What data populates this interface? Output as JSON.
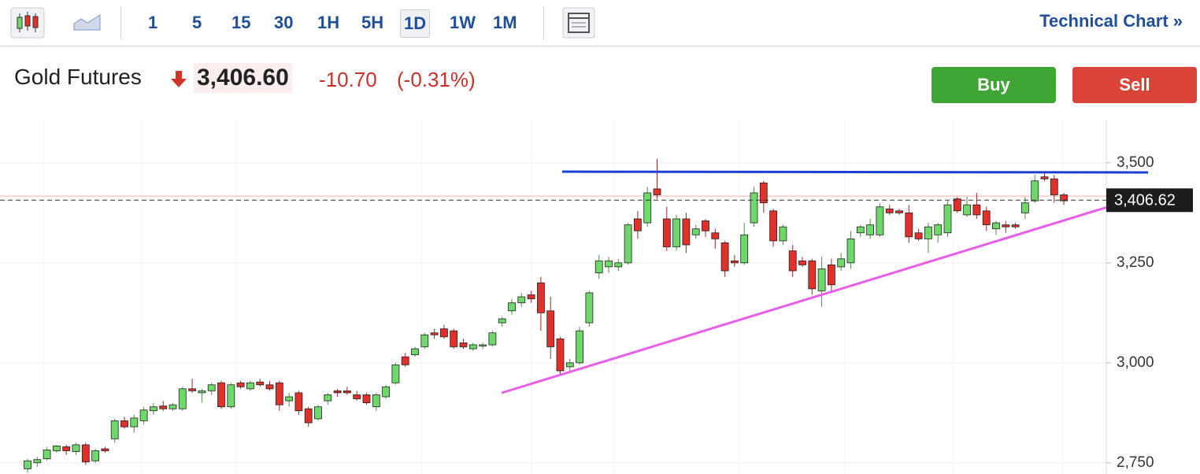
{
  "toolbar": {
    "intervals": [
      "1",
      "5",
      "15",
      "30",
      "1H",
      "5H",
      "1D",
      "1W",
      "1M"
    ],
    "selected_interval": "1D",
    "technical_chart": "Technical Chart »"
  },
  "quote": {
    "name": "Gold Futures",
    "price": "3,406.60",
    "change": "-10.70",
    "change_percent": "(-0.31%)"
  },
  "actions": {
    "buy": "Buy",
    "sell": "Sell"
  },
  "chart_data": {
    "type": "candlestick",
    "up_color": "#6fd86a",
    "down_color": "#e2302b",
    "open": [
      2735,
      2750,
      2760,
      2780,
      2790,
      2778,
      2795,
      2755,
      2785,
      2810,
      2855,
      2840,
      2855,
      2880,
      2892,
      2885,
      2885,
      2935,
      2925,
      2930,
      2950,
      2890,
      2950,
      2935,
      2952,
      2945,
      2950,
      2905,
      2925,
      2885,
      2860,
      2905,
      2930,
      2930,
      2920,
      2920,
      2890,
      2915,
      2950,
      3015,
      3020,
      3040,
      3075,
      3085,
      3080,
      3050,
      3035,
      3045,
      3045,
      3100,
      3130,
      3150,
      3170,
      3200,
      3130,
      3060,
      2990,
      3000,
      3100,
      3225,
      3240,
      3240,
      3250,
      3360,
      3350,
      3435,
      3360,
      3290,
      3360,
      3320,
      3355,
      3325,
      3300,
      3255,
      3250,
      3350,
      3450,
      3380,
      3305,
      3280,
      3255,
      3255,
      3180,
      3245,
      3240,
      3250,
      3325,
      3320,
      3320,
      3385,
      3380,
      3375,
      3325,
      3310,
      3320,
      3325,
      3410,
      3370,
      3395,
      3380,
      3335,
      3345,
      3345,
      3375,
      3405,
      3465,
      3460,
      3420
    ],
    "high": [
      2760,
      2765,
      2790,
      2795,
      2795,
      2800,
      2800,
      2785,
      2790,
      2860,
      2865,
      2870,
      2890,
      2900,
      2905,
      2900,
      2940,
      2960,
      2935,
      2950,
      2955,
      2950,
      2955,
      2955,
      2960,
      2955,
      2955,
      2925,
      2930,
      2890,
      2895,
      2925,
      2935,
      2940,
      2930,
      2925,
      2925,
      2945,
      3000,
      3025,
      3040,
      3075,
      3085,
      3095,
      3085,
      3060,
      3050,
      3050,
      3080,
      3115,
      3160,
      3175,
      3180,
      3215,
      3165,
      3065,
      3010,
      3090,
      3180,
      3270,
      3265,
      3260,
      3350,
      3380,
      3440,
      3510,
      3390,
      3370,
      3375,
      3345,
      3360,
      3335,
      3305,
      3270,
      3350,
      3440,
      3455,
      3385,
      3345,
      3295,
      3265,
      3260,
      3265,
      3260,
      3275,
      3330,
      3345,
      3360,
      3400,
      3395,
      3385,
      3395,
      3335,
      3350,
      3350,
      3405,
      3415,
      3415,
      3425,
      3390,
      3355,
      3355,
      3350,
      3415,
      3470,
      3475,
      3470,
      3425
    ],
    "low": [
      2725,
      2740,
      2755,
      2775,
      2770,
      2770,
      2745,
      2750,
      2775,
      2800,
      2835,
      2825,
      2845,
      2870,
      2880,
      2880,
      2880,
      2925,
      2900,
      2920,
      2885,
      2885,
      2935,
      2930,
      2940,
      2930,
      2880,
      2890,
      2870,
      2840,
      2855,
      2895,
      2915,
      2920,
      2905,
      2895,
      2880,
      2910,
      2945,
      2990,
      3015,
      3035,
      3060,
      3060,
      3035,
      3035,
      3030,
      3035,
      3040,
      3090,
      3120,
      3140,
      3150,
      3080,
      3010,
      2970,
      2980,
      2995,
      3090,
      3210,
      3225,
      3230,
      3245,
      3310,
      3340,
      3410,
      3280,
      3280,
      3275,
      3310,
      3315,
      3285,
      3215,
      3240,
      3245,
      3340,
      3375,
      3290,
      3295,
      3215,
      3240,
      3170,
      3140,
      3175,
      3230,
      3235,
      3315,
      3310,
      3315,
      3370,
      3370,
      3300,
      3305,
      3275,
      3300,
      3315,
      3375,
      3365,
      3360,
      3330,
      3320,
      3325,
      3335,
      3360,
      3400,
      3455,
      3400,
      3395
    ],
    "close": [
      2755,
      2758,
      2782,
      2792,
      2780,
      2795,
      2752,
      2780,
      2780,
      2855,
      2840,
      2862,
      2882,
      2890,
      2885,
      2895,
      2935,
      2930,
      2930,
      2945,
      2890,
      2945,
      2940,
      2950,
      2945,
      2935,
      2895,
      2915,
      2880,
      2850,
      2890,
      2920,
      2925,
      2925,
      2910,
      2900,
      2920,
      2940,
      2995,
      2995,
      3035,
      3070,
      3070,
      3065,
      3040,
      3040,
      3045,
      3045,
      3075,
      3110,
      3150,
      3165,
      3160,
      3125,
      3040,
      2980,
      3000,
      3080,
      3175,
      3255,
      3255,
      3250,
      3345,
      3330,
      3425,
      3420,
      3290,
      3360,
      3295,
      3335,
      3330,
      3310,
      3230,
      3250,
      3320,
      3425,
      3400,
      3305,
      3340,
      3230,
      3245,
      3185,
      3235,
      3195,
      3260,
      3310,
      3340,
      3345,
      3390,
      3375,
      3375,
      3315,
      3310,
      3340,
      3345,
      3395,
      3380,
      3395,
      3370,
      3345,
      3350,
      3340,
      3340,
      3400,
      3455,
      3460,
      3420,
      3405
    ],
    "ylim": [
      2722,
      3608
    ],
    "yticks": [
      {
        "value": 2750,
        "label": "2,750"
      },
      {
        "value": 3000,
        "label": "3,000"
      },
      {
        "value": 3250,
        "label": "3,250"
      },
      {
        "value": 3500,
        "label": "3,500"
      }
    ],
    "last_price": {
      "value": 3406.62,
      "label": "3,406.62"
    },
    "grid": true
  }
}
